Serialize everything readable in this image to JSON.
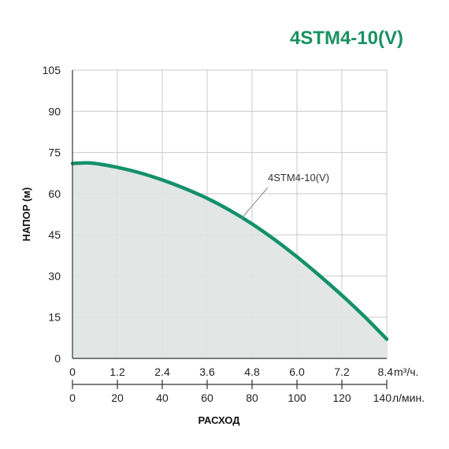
{
  "chart_data": {
    "type": "area",
    "title": "4STM4-10(V)",
    "xlabel": "РАСХОД",
    "ylabel": "НАПОР (м)",
    "x_unit_primary": "m³/ч.",
    "x_unit_secondary": "л/мин.",
    "x_ticks_primary": [
      "0",
      "1.2",
      "2.4",
      "3.6",
      "4.8",
      "6.0",
      "7.2",
      "8.4"
    ],
    "x_ticks_secondary": [
      "0",
      "20",
      "40",
      "60",
      "80",
      "100",
      "120",
      "140"
    ],
    "y_ticks": [
      "0",
      "15",
      "30",
      "45",
      "60",
      "75",
      "90",
      "105"
    ],
    "xlim": [
      0,
      8.4
    ],
    "ylim": [
      0,
      105
    ],
    "grid": true,
    "series": [
      {
        "name": "4STM4-10(V)",
        "x": [
          0,
          0.3,
          0.6,
          1.2,
          1.8,
          2.4,
          3.0,
          3.6,
          4.2,
          4.8,
          5.4,
          6.0,
          6.6,
          7.2,
          7.8,
          8.4
        ],
        "y": [
          71,
          71.2,
          71,
          69.6,
          67.6,
          65,
          61.9,
          58.3,
          54,
          49,
          43.3,
          37,
          30.2,
          23,
          15.3,
          7
        ]
      }
    ],
    "colors": {
      "curve": "#14916a",
      "fill": "#dfe4e3",
      "grid": "#c9c9c9",
      "axis": "#333333"
    }
  }
}
